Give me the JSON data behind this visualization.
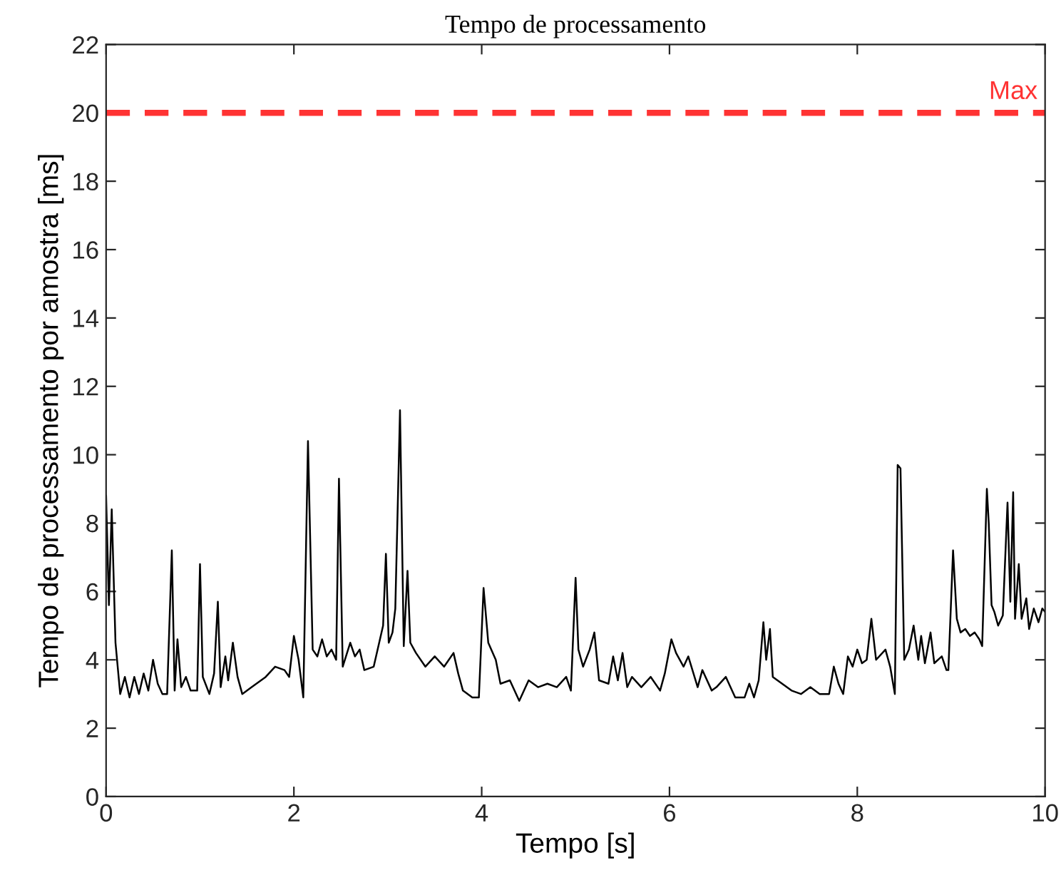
{
  "chart_data": {
    "type": "line",
    "title": "Tempo de processamento",
    "xlabel": "Tempo [s]",
    "ylabel": "Tempo de processamento por amostra [ms]",
    "xlim": [
      0,
      10
    ],
    "xticks": [
      0,
      2,
      4,
      6,
      8,
      10
    ],
    "ylim": [
      0,
      22
    ],
    "yticks": [
      0,
      2,
      4,
      6,
      8,
      10,
      12,
      14,
      16,
      18,
      20,
      22
    ],
    "grid": false,
    "legend": false,
    "marker": "none",
    "line_style": "solid",
    "ref_lines": [
      {
        "axis": "y",
        "value": 20,
        "label": "Max",
        "color": "#ff3333",
        "line_style": "dashed"
      }
    ],
    "series": [
      {
        "color": "#000000",
        "x": [
          0,
          0.03,
          0.06,
          0.1,
          0.15,
          0.2,
          0.25,
          0.3,
          0.35,
          0.4,
          0.45,
          0.5,
          0.55,
          0.6,
          0.65,
          0.7,
          0.73,
          0.76,
          0.8,
          0.85,
          0.9,
          0.97,
          1.0,
          1.03,
          1.1,
          1.15,
          1.19,
          1.22,
          1.27,
          1.3,
          1.35,
          1.4,
          1.45,
          1.55,
          1.7,
          1.8,
          1.9,
          1.95,
          2.0,
          2.05,
          2.1,
          2.15,
          2.2,
          2.25,
          2.3,
          2.35,
          2.4,
          2.45,
          2.48,
          2.52,
          2.6,
          2.65,
          2.7,
          2.75,
          2.85,
          2.9,
          2.95,
          2.98,
          3.01,
          3.05,
          3.08,
          3.13,
          3.17,
          3.21,
          3.24,
          3.3,
          3.4,
          3.5,
          3.6,
          3.7,
          3.75,
          3.8,
          3.9,
          3.97,
          4.02,
          4.07,
          4.15,
          4.2,
          4.3,
          4.4,
          4.5,
          4.6,
          4.7,
          4.8,
          4.9,
          4.95,
          5.0,
          5.03,
          5.08,
          5.15,
          5.2,
          5.25,
          5.35,
          5.4,
          5.45,
          5.5,
          5.55,
          5.6,
          5.7,
          5.8,
          5.9,
          5.95,
          6.02,
          6.07,
          6.15,
          6.2,
          6.3,
          6.35,
          6.45,
          6.5,
          6.6,
          6.7,
          6.8,
          6.85,
          6.9,
          6.95,
          7.0,
          7.03,
          7.07,
          7.1,
          7.2,
          7.3,
          7.4,
          7.5,
          7.6,
          7.7,
          7.75,
          7.8,
          7.85,
          7.9,
          7.95,
          8.0,
          8.05,
          8.1,
          8.15,
          8.2,
          8.3,
          8.35,
          8.4,
          8.43,
          8.46,
          8.5,
          8.55,
          8.6,
          8.65,
          8.68,
          8.72,
          8.78,
          8.82,
          8.9,
          8.95,
          8.97,
          9.02,
          9.06,
          9.1,
          9.15,
          9.2,
          9.25,
          9.3,
          9.33,
          9.38,
          9.4,
          9.43,
          9.46,
          9.5,
          9.55,
          9.6,
          9.63,
          9.66,
          9.68,
          9.72,
          9.75,
          9.8,
          9.83,
          9.88,
          9.93,
          9.97,
          10.0
        ],
        "values": [
          8.8,
          5.6,
          8.4,
          4.5,
          3.0,
          3.5,
          2.9,
          3.5,
          3.0,
          3.6,
          3.1,
          4.0,
          3.3,
          3.0,
          3.0,
          7.2,
          3.1,
          4.6,
          3.2,
          3.5,
          3.1,
          3.1,
          6.8,
          3.5,
          3.0,
          3.6,
          5.7,
          3.2,
          4.1,
          3.4,
          4.5,
          3.5,
          3.0,
          3.2,
          3.5,
          3.8,
          3.7,
          3.5,
          4.7,
          4.0,
          2.9,
          10.4,
          4.3,
          4.1,
          4.6,
          4.1,
          4.3,
          4.0,
          9.3,
          3.8,
          4.5,
          4.1,
          4.3,
          3.7,
          3.8,
          4.4,
          5.0,
          7.1,
          4.5,
          4.8,
          5.5,
          11.3,
          4.4,
          6.6,
          4.5,
          4.2,
          3.8,
          4.1,
          3.8,
          4.2,
          3.6,
          3.1,
          2.9,
          2.9,
          6.1,
          4.5,
          4.0,
          3.3,
          3.4,
          2.8,
          3.4,
          3.2,
          3.3,
          3.2,
          3.5,
          3.1,
          6.4,
          4.3,
          3.8,
          4.3,
          4.8,
          3.4,
          3.3,
          4.1,
          3.4,
          4.2,
          3.2,
          3.5,
          3.2,
          3.5,
          3.1,
          3.6,
          4.6,
          4.2,
          3.8,
          4.1,
          3.2,
          3.7,
          3.1,
          3.2,
          3.5,
          2.9,
          2.9,
          3.3,
          2.9,
          3.4,
          5.1,
          4.0,
          4.9,
          3.5,
          3.3,
          3.1,
          3.0,
          3.2,
          3.0,
          3.0,
          3.8,
          3.3,
          3.0,
          4.1,
          3.8,
          4.3,
          3.9,
          4.0,
          5.2,
          4.0,
          4.3,
          3.8,
          3.0,
          9.7,
          9.6,
          4.0,
          4.3,
          5.0,
          4.0,
          4.7,
          3.9,
          4.8,
          3.9,
          4.1,
          3.7,
          3.7,
          7.2,
          5.2,
          4.8,
          4.9,
          4.7,
          4.8,
          4.6,
          4.4,
          9.0,
          8.0,
          5.6,
          5.4,
          5.0,
          5.3,
          8.6,
          5.7,
          8.9,
          5.2,
          6.8,
          5.2,
          5.8,
          4.9,
          5.5,
          5.1,
          5.5,
          5.4
        ]
      }
    ]
  }
}
